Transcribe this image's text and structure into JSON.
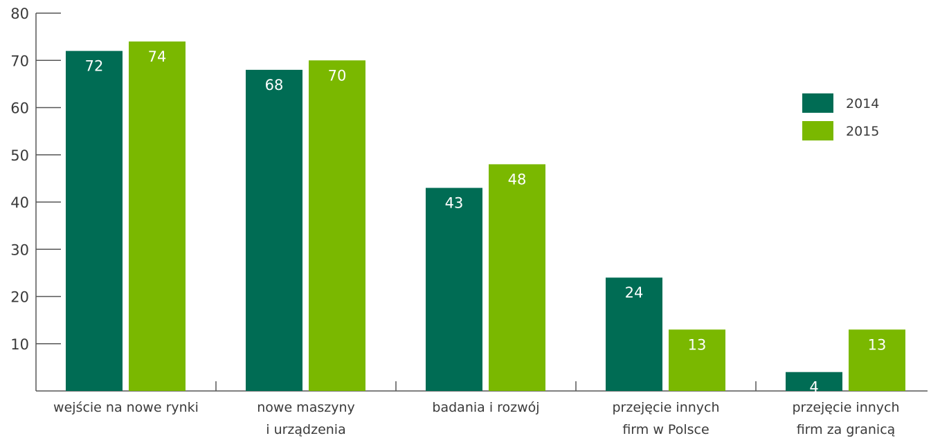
{
  "chart_data": {
    "type": "bar",
    "categories": [
      [
        "wejście na nowe rynki"
      ],
      [
        "nowe maszyny",
        "i urządzenia"
      ],
      [
        "badania i rozwój"
      ],
      [
        "przejęcie innych",
        "firm w Polsce"
      ],
      [
        "przejęcie innych",
        "firm za granicą"
      ]
    ],
    "series": [
      {
        "name": "2014",
        "color": "#006c54",
        "values": [
          72,
          68,
          43,
          24,
          4
        ]
      },
      {
        "name": "2015",
        "color": "#7ab800",
        "values": [
          74,
          70,
          48,
          13,
          13
        ]
      }
    ],
    "y_ticks": [
      10,
      20,
      30,
      40,
      50,
      60,
      70,
      80
    ],
    "ylim": [
      0,
      80
    ],
    "grid": false,
    "legend_position": "top-right",
    "axis_color": "#555555"
  }
}
